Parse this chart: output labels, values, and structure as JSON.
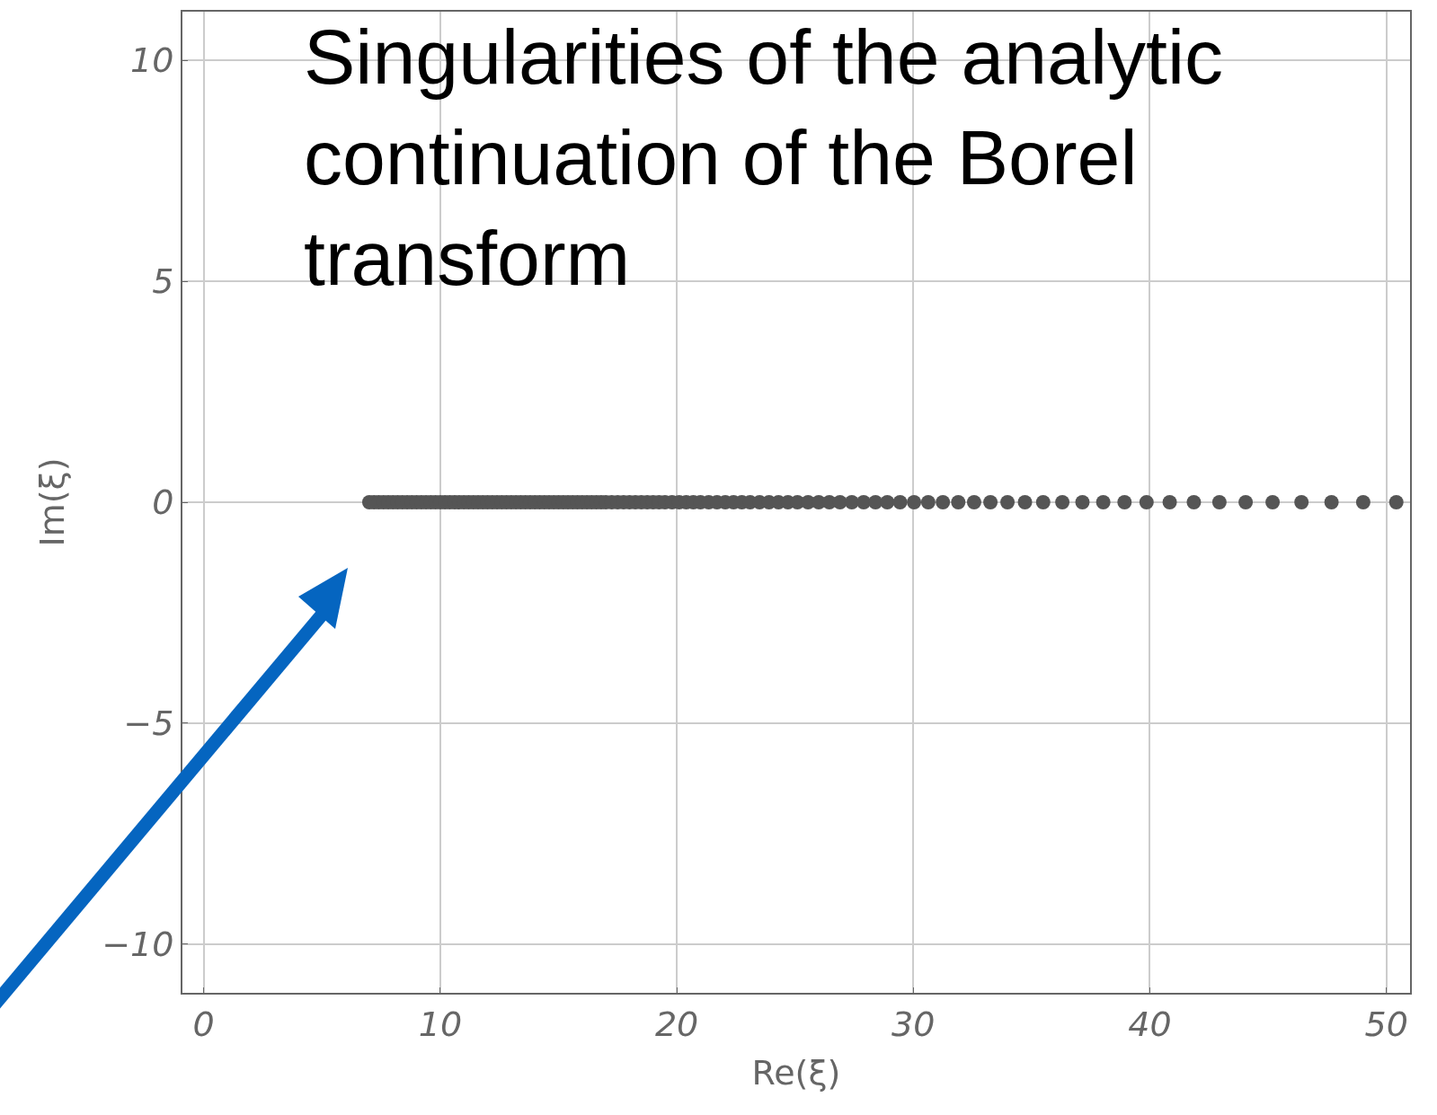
{
  "chart_data": {
    "type": "scatter",
    "title": "Singularities of the analytic continuation of the Borel transform",
    "xlabel": "Re(ξ)",
    "ylabel": "Im(ξ)",
    "xlim": [
      -0.9,
      51
    ],
    "xticks": [
      0,
      10,
      20,
      30,
      40,
      50
    ],
    "ylim": [
      -11.1,
      11.1
    ],
    "yticks": [
      -10,
      -5,
      0,
      5,
      10
    ],
    "grid": true,
    "marker": "circle",
    "series": [
      {
        "color": "#555555",
        "x": [
          7.0,
          7.2,
          7.4,
          7.6,
          7.8,
          8.0,
          8.2,
          8.4,
          8.6,
          8.8,
          9.0,
          9.2,
          9.4,
          9.6,
          9.8,
          10.0,
          10.2,
          10.4,
          10.6,
          10.8,
          11.0,
          11.2,
          11.4,
          11.6,
          11.8,
          12.0,
          12.2,
          12.4,
          12.6,
          12.8,
          13.0,
          13.2,
          13.4,
          13.6,
          13.8,
          14.0,
          14.2,
          14.4,
          14.6,
          14.8,
          15.0,
          15.2,
          15.4,
          15.6,
          15.8,
          16.0,
          16.2,
          16.4,
          16.6,
          16.8,
          17.0,
          17.25,
          17.5,
          17.75,
          18.0,
          18.25,
          18.5,
          18.75,
          19.0,
          19.25,
          19.5,
          19.8,
          20.1,
          20.4,
          20.7,
          21.0,
          21.35,
          21.7,
          22.05,
          22.4,
          22.75,
          23.1,
          23.5,
          23.9,
          24.3,
          24.7,
          25.1,
          25.55,
          26.0,
          26.45,
          26.9,
          27.4,
          27.9,
          28.4,
          28.9,
          29.44,
          30.03,
          30.63,
          31.25,
          31.9,
          32.57,
          33.26,
          33.98,
          34.72,
          35.49,
          36.3,
          37.15,
          38.03,
          38.93,
          39.86,
          40.84,
          41.86,
          42.94,
          44.05,
          45.19,
          46.41,
          47.68,
          49.02,
          50.42
        ],
        "values": [
          0,
          0,
          0,
          0,
          0,
          0,
          0,
          0,
          0,
          0,
          0,
          0,
          0,
          0,
          0,
          0,
          0,
          0,
          0,
          0,
          0,
          0,
          0,
          0,
          0,
          0,
          0,
          0,
          0,
          0,
          0,
          0,
          0,
          0,
          0,
          0,
          0,
          0,
          0,
          0,
          0,
          0,
          0,
          0,
          0,
          0,
          0,
          0,
          0,
          0,
          0,
          0,
          0,
          0,
          0,
          0,
          0,
          0,
          0,
          0,
          0,
          0,
          0,
          0,
          0,
          0,
          0,
          0,
          0,
          0,
          0,
          0,
          0,
          0,
          0,
          0,
          0,
          0,
          0,
          0,
          0,
          0,
          0,
          0,
          0,
          0,
          0,
          0,
          0,
          0,
          0,
          0,
          0,
          0,
          0,
          0,
          0,
          0,
          0,
          0,
          0,
          0,
          0,
          0,
          0,
          0,
          0,
          0,
          0
        ]
      }
    ]
  }
}
